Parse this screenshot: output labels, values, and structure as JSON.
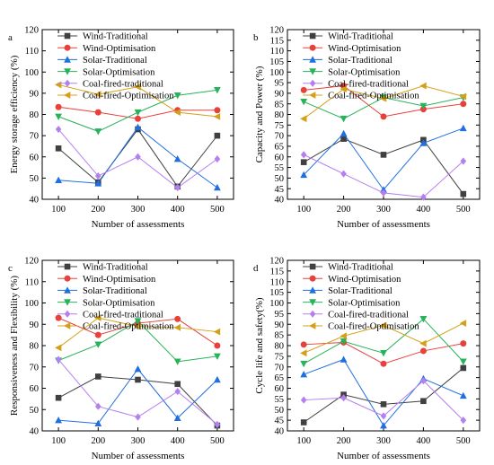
{
  "chart_data": [
    {
      "type": "line",
      "panel": "a",
      "xlabel": "Number of assessments",
      "ylabel": "Energy storage efficiency (%)",
      "categories": [
        "100",
        "200",
        "300",
        "400",
        "500"
      ],
      "ylim": [
        40,
        120
      ],
      "yticks": [
        "40",
        "50",
        "60",
        "70",
        "80",
        "90",
        "100",
        "110",
        "120"
      ],
      "legend_position": "top-right",
      "series": [
        {
          "name": "Wind-Traditional",
          "color": "#404040",
          "marker": "square",
          "values": [
            64,
            48,
            73,
            46,
            70
          ]
        },
        {
          "name": "Wind-Optimisation",
          "color": "#e8413b",
          "marker": "circle",
          "values": [
            83.5,
            81,
            78,
            82,
            82
          ]
        },
        {
          "name": "Solar-Traditional",
          "color": "#1f6fe0",
          "marker": "triangle-up",
          "values": [
            49,
            47.5,
            74,
            59,
            45.5
          ]
        },
        {
          "name": "Solar-Optimisation",
          "color": "#27b35a",
          "marker": "triangle-down",
          "values": [
            79,
            72,
            81,
            89,
            91.5
          ]
        },
        {
          "name": "Coal-fired-traditional",
          "color": "#b57ff0",
          "marker": "diamond",
          "values": [
            73,
            51,
            60,
            45.5,
            59
          ]
        },
        {
          "name": "Coal-fired-Optimisation",
          "color": "#d4a017",
          "marker": "triangle-left",
          "values": [
            94,
            89.5,
            93,
            81,
            79
          ]
        }
      ]
    },
    {
      "type": "line",
      "panel": "b",
      "xlabel": "Number of assessments",
      "ylabel": "Capacity and Power (%)",
      "categories": [
        "100",
        "200",
        "300",
        "400",
        "500"
      ],
      "ylim": [
        40,
        120
      ],
      "yticks": [
        "40",
        "45",
        "50",
        "55",
        "60",
        "65",
        "70",
        "75",
        "80",
        "85",
        "90",
        "95",
        "100",
        "105",
        "110",
        "115",
        "120"
      ],
      "legend_position": "top-right",
      "series": [
        {
          "name": "Wind-Traditional",
          "color": "#404040",
          "marker": "square",
          "values": [
            57.5,
            68.5,
            61,
            68,
            42.5
          ]
        },
        {
          "name": "Wind-Optimisation",
          "color": "#e8413b",
          "marker": "circle",
          "values": [
            91.5,
            93.5,
            79,
            82.5,
            85
          ]
        },
        {
          "name": "Solar-Traditional",
          "color": "#1f6fe0",
          "marker": "triangle-up",
          "values": [
            51.5,
            71,
            44.5,
            66.5,
            73.5
          ]
        },
        {
          "name": "Solar-Optimisation",
          "color": "#27b35a",
          "marker": "triangle-down",
          "values": [
            86,
            78,
            88,
            84,
            88
          ]
        },
        {
          "name": "Coal-fired-traditional",
          "color": "#b57ff0",
          "marker": "diamond",
          "values": [
            61,
            52,
            43,
            41,
            58
          ]
        },
        {
          "name": "Coal-fired-Optimisation",
          "color": "#d4a017",
          "marker": "triangle-left",
          "values": [
            78,
            92,
            87.5,
            93.5,
            88.5
          ]
        }
      ]
    },
    {
      "type": "line",
      "panel": "c",
      "xlabel": "Number of assessments",
      "ylabel": "Responsiveness and Flexibility (%)",
      "categories": [
        "100",
        "200",
        "300",
        "400",
        "500"
      ],
      "ylim": [
        40,
        120
      ],
      "yticks": [
        "40",
        "50",
        "60",
        "70",
        "80",
        "90",
        "100",
        "110",
        "120"
      ],
      "legend_position": "top-right",
      "series": [
        {
          "name": "Wind-Traditional",
          "color": "#404040",
          "marker": "square",
          "values": [
            55.5,
            65.5,
            64,
            62,
            42.5
          ]
        },
        {
          "name": "Wind-Optimisation",
          "color": "#e8413b",
          "marker": "circle",
          "values": [
            93,
            85,
            90.5,
            92.5,
            80
          ]
        },
        {
          "name": "Solar-Traditional",
          "color": "#1f6fe0",
          "marker": "triangle-up",
          "values": [
            45,
            43.5,
            69,
            46,
            64
          ]
        },
        {
          "name": "Solar-Optimisation",
          "color": "#27b35a",
          "marker": "triangle-down",
          "values": [
            73,
            80.5,
            91.5,
            72.5,
            75
          ]
        },
        {
          "name": "Coal-fired-traditional",
          "color": "#b57ff0",
          "marker": "diamond",
          "values": [
            73.5,
            51.5,
            46.5,
            58.5,
            43
          ]
        },
        {
          "name": "Coal-fired-Optimisation",
          "color": "#d4a017",
          "marker": "triangle-left",
          "values": [
            79,
            93,
            89,
            88.5,
            86.5
          ]
        }
      ]
    },
    {
      "type": "line",
      "panel": "d",
      "xlabel": "Number of assessments",
      "ylabel": "Cycle life and safety(%)",
      "categories": [
        "100",
        "200",
        "300",
        "400",
        "500"
      ],
      "ylim": [
        40,
        120
      ],
      "yticks": [
        "40",
        "45",
        "50",
        "55",
        "60",
        "65",
        "70",
        "75",
        "80",
        "85",
        "90",
        "95",
        "100",
        "105",
        "110",
        "115",
        "120"
      ],
      "legend_position": "top-right",
      "series": [
        {
          "name": "Wind-Traditional",
          "color": "#404040",
          "marker": "square",
          "values": [
            44,
            57,
            52.5,
            54,
            69.5
          ]
        },
        {
          "name": "Wind-Optimisation",
          "color": "#e8413b",
          "marker": "circle",
          "values": [
            80.5,
            81.5,
            71.5,
            77.5,
            81
          ]
        },
        {
          "name": "Solar-Traditional",
          "color": "#1f6fe0",
          "marker": "triangle-up",
          "values": [
            66.5,
            73.5,
            42.5,
            64.5,
            56.5
          ]
        },
        {
          "name": "Solar-Optimisation",
          "color": "#27b35a",
          "marker": "triangle-down",
          "values": [
            71.5,
            82,
            76.5,
            92.5,
            72.5
          ]
        },
        {
          "name": "Coal-fired-traditional",
          "color": "#b57ff0",
          "marker": "diamond",
          "values": [
            54.5,
            55.5,
            47,
            63.5,
            45
          ]
        },
        {
          "name": "Coal-fired-Optimisation",
          "color": "#d4a017",
          "marker": "triangle-left",
          "values": [
            76.5,
            84.5,
            89.5,
            81,
            90.5
          ]
        }
      ]
    }
  ]
}
